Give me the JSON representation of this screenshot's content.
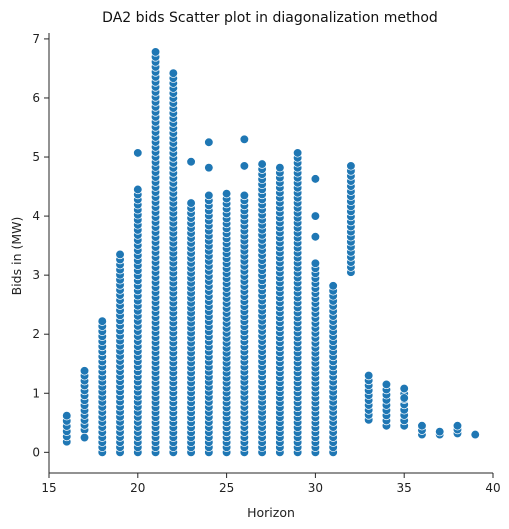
{
  "chart_data": {
    "type": "scatter",
    "title": "DA2 bids Scatter plot in diagonalization method",
    "xlabel": "Horizon",
    "ylabel": "Bids in (MW)",
    "xlim": [
      15,
      40
    ],
    "ylim": [
      -0.35,
      7.1
    ],
    "xticks": [
      15,
      20,
      25,
      30,
      35,
      40
    ],
    "yticks": [
      0,
      1,
      2,
      3,
      4,
      5,
      6,
      7
    ],
    "xtick_labels": [
      "15",
      "20",
      "25",
      "30",
      "35",
      "40"
    ],
    "ytick_labels": [
      "0",
      "1",
      "2",
      "3",
      "4",
      "5",
      "6",
      "7"
    ],
    "grid": false,
    "marker_color": "#1f77b4",
    "marker_edge_color": "#ffffff",
    "columns": [
      {
        "x": 16,
        "min": 0.18,
        "max": 0.62,
        "extra": []
      },
      {
        "x": 17,
        "min": 0.38,
        "max": 1.38,
        "extra": [
          0.25
        ]
      },
      {
        "x": 18,
        "min": 0.0,
        "max": 2.22,
        "extra": []
      },
      {
        "x": 19,
        "min": 0.0,
        "max": 3.35,
        "extra": []
      },
      {
        "x": 20,
        "min": 0.0,
        "max": 4.45,
        "extra": [
          5.07
        ]
      },
      {
        "x": 21,
        "min": 0.0,
        "max": 6.78,
        "extra": []
      },
      {
        "x": 22,
        "min": 0.0,
        "max": 6.42,
        "extra": []
      },
      {
        "x": 23,
        "min": 0.0,
        "max": 4.22,
        "extra": [
          4.92
        ]
      },
      {
        "x": 24,
        "min": 0.0,
        "max": 4.35,
        "extra": [
          5.25,
          4.82
        ]
      },
      {
        "x": 25,
        "min": 0.0,
        "max": 4.38,
        "extra": []
      },
      {
        "x": 26,
        "min": 0.0,
        "max": 4.35,
        "extra": [
          5.3,
          4.85
        ]
      },
      {
        "x": 27,
        "min": 0.0,
        "max": 4.88,
        "extra": []
      },
      {
        "x": 28,
        "min": 0.0,
        "max": 4.82,
        "extra": []
      },
      {
        "x": 29,
        "min": 0.0,
        "max": 5.07,
        "extra": []
      },
      {
        "x": 30,
        "min": 0.0,
        "max": 3.2,
        "extra": [
          4.63,
          4.0,
          3.65
        ]
      },
      {
        "x": 31,
        "min": 0.0,
        "max": 2.82,
        "extra": []
      },
      {
        "x": 32,
        "min": 3.05,
        "max": 4.85,
        "extra": []
      },
      {
        "x": 33,
        "min": 0.55,
        "max": 1.3,
        "extra": []
      },
      {
        "x": 34,
        "min": 0.45,
        "max": 1.15,
        "extra": []
      },
      {
        "x": 35,
        "min": 0.45,
        "max": 1.08,
        "extra": [
          0.92
        ]
      },
      {
        "x": 36,
        "min": 0.3,
        "max": 0.45,
        "extra": []
      },
      {
        "x": 37,
        "min": 0.3,
        "max": 0.35,
        "extra": []
      },
      {
        "x": 38,
        "min": 0.32,
        "max": 0.45,
        "extra": []
      },
      {
        "x": 39,
        "min": 0.3,
        "max": 0.3,
        "extra": []
      }
    ]
  }
}
